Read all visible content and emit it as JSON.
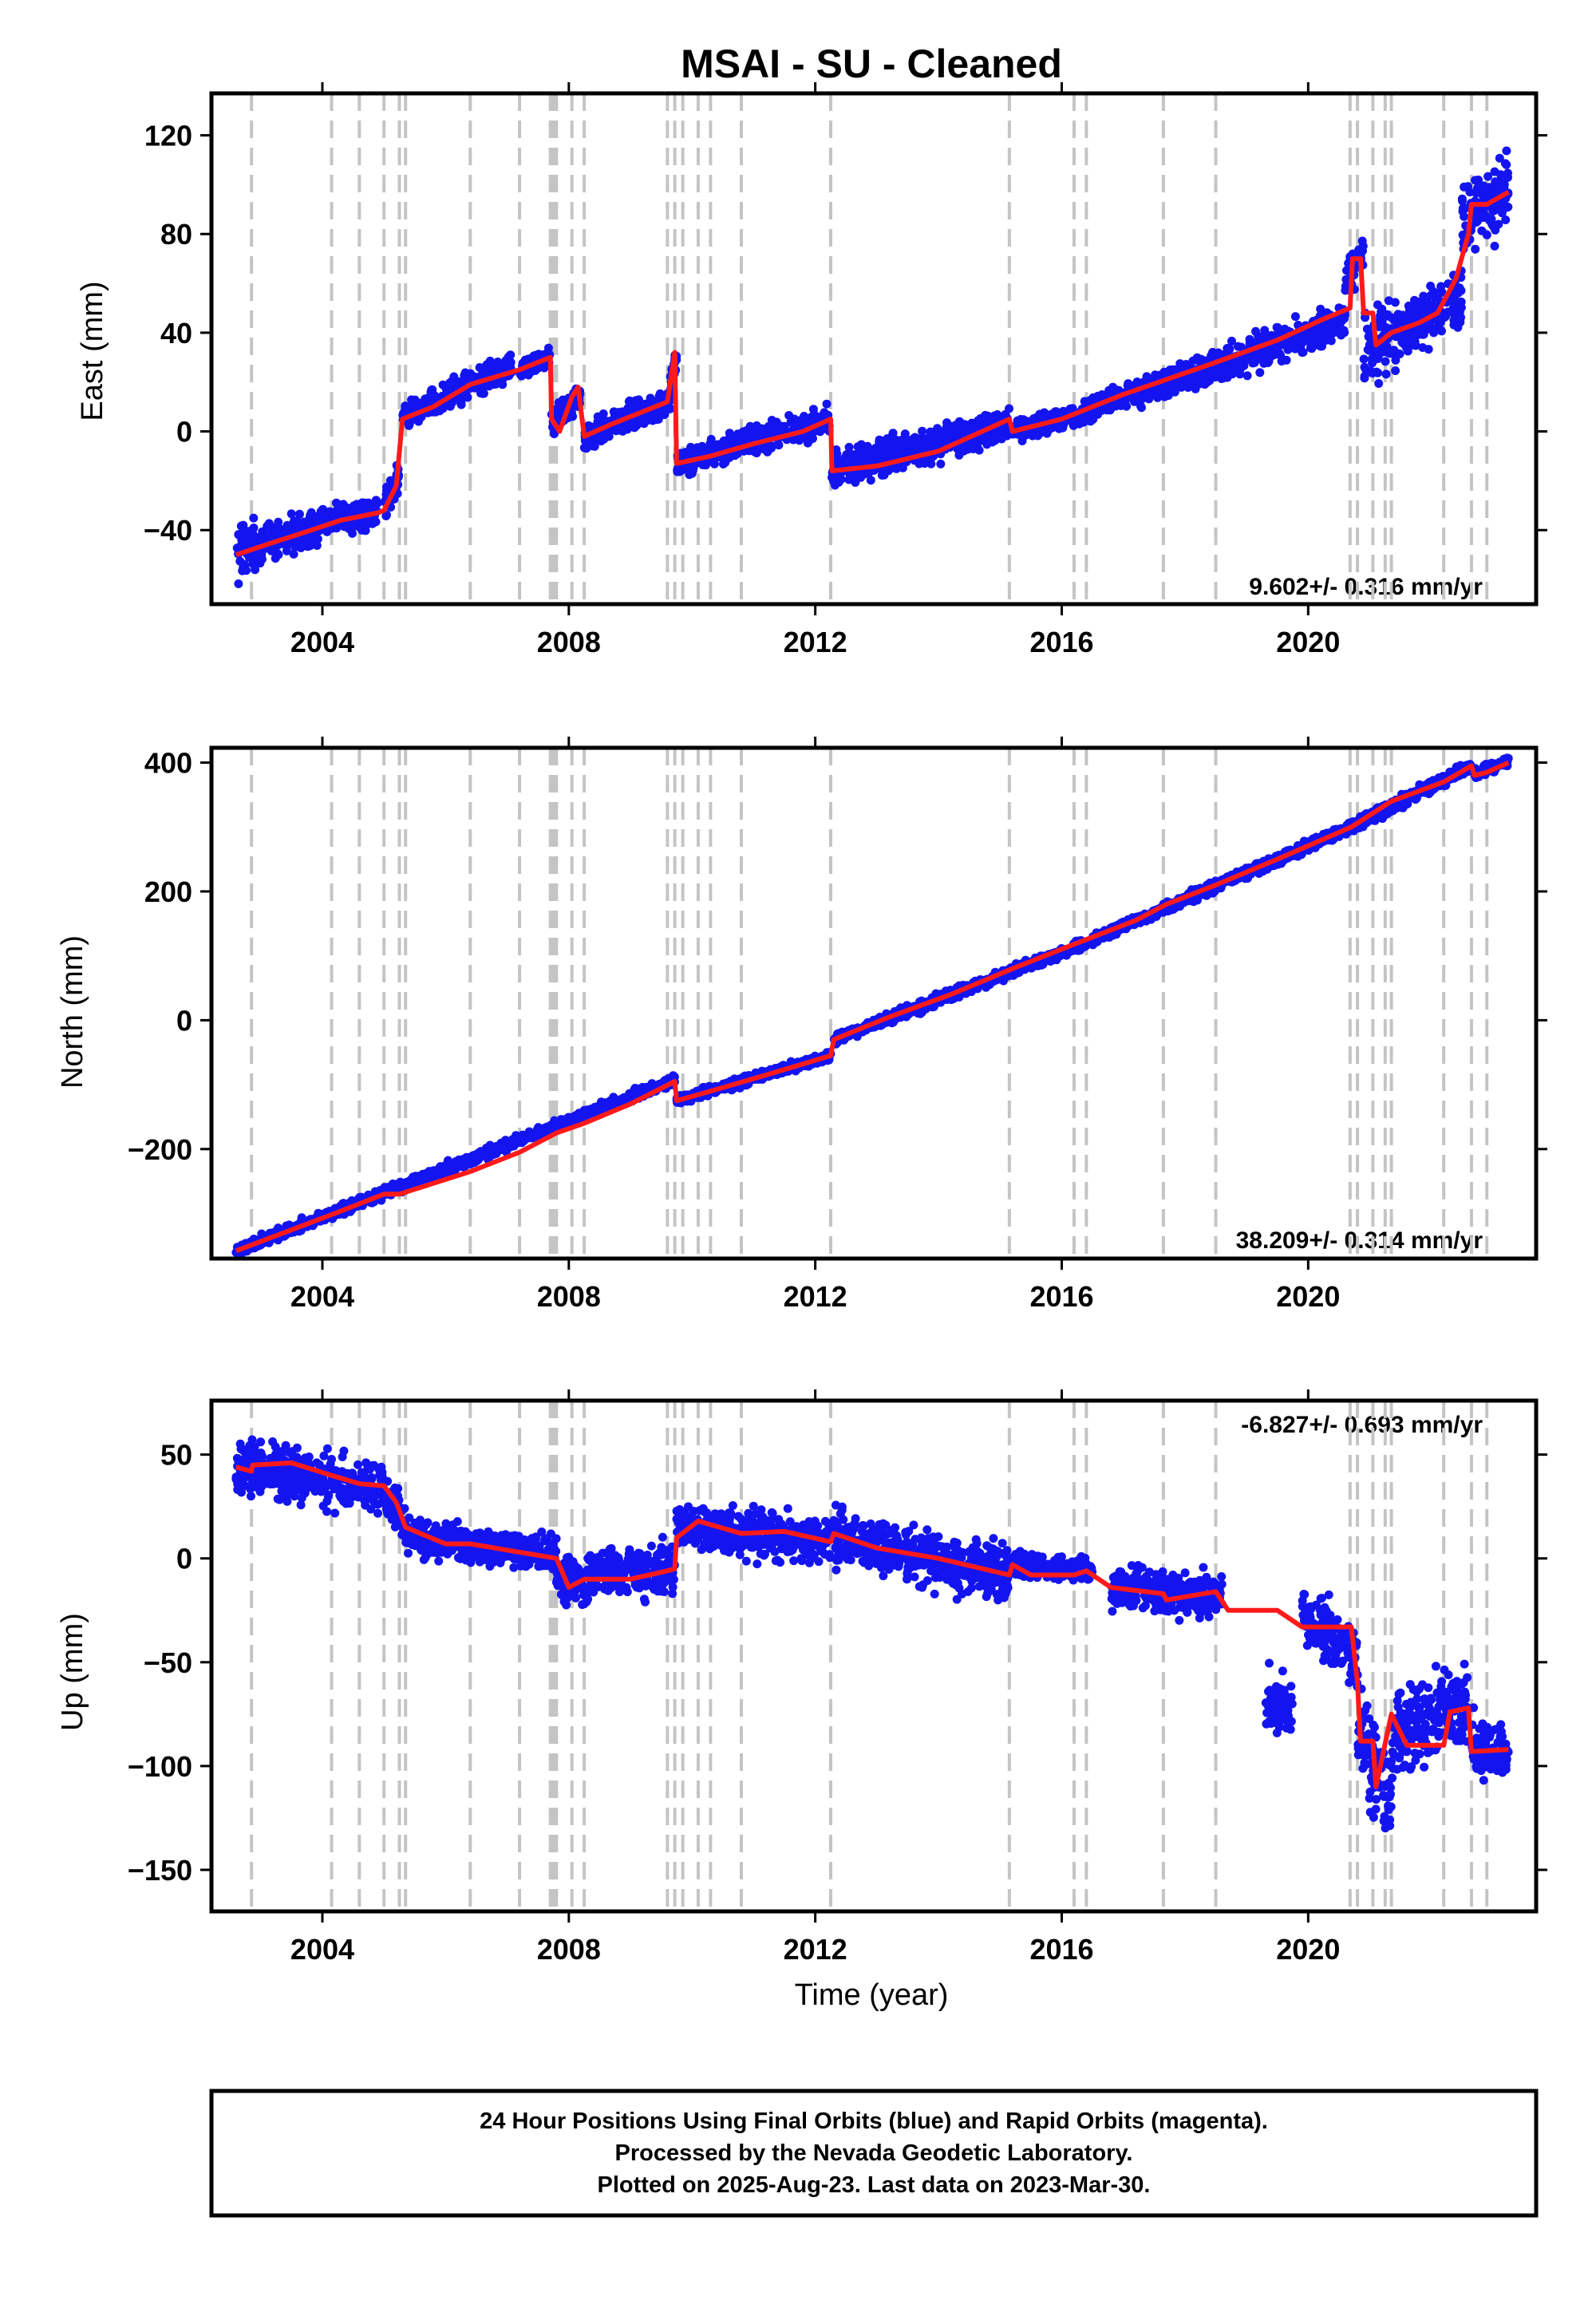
{
  "chart_data": {
    "type": "scatter",
    "title": "MSAI  - SU - Cleaned",
    "xlabel": "Time (year)",
    "xlim": [
      2002.2,
      2023.7
    ],
    "xticks": [
      2004,
      2008,
      2012,
      2016,
      2020
    ],
    "xtick_labels": [
      "2004",
      "2008",
      "2012",
      "2016",
      "2020"
    ],
    "grid": "vertical dashed lines at equipment / event epochs",
    "event_lines": [
      2002.85,
      2004.15,
      2004.6,
      2005.0,
      2005.25,
      2005.35,
      2006.4,
      2007.2,
      2007.7,
      2007.75,
      2007.8,
      2008.05,
      2008.25,
      2009.6,
      2009.72,
      2009.85,
      2010.1,
      2010.3,
      2010.8,
      2012.25,
      2015.15,
      2016.2,
      2016.4,
      2017.65,
      2018.5,
      2020.68,
      2020.8,
      2021.05,
      2021.25,
      2021.35,
      2022.2,
      2022.65,
      2022.9
    ],
    "panels": [
      {
        "ylabel": "East (mm)",
        "ylim": [
          -70,
          137
        ],
        "yticks": [
          -40,
          0,
          40,
          80,
          120
        ],
        "ytick_labels": [
          "−40",
          "0",
          "40",
          "80",
          "120"
        ],
        "rate_text": "9.602+/- 0.316 mm/yr",
        "rate_position": "bottom-right",
        "model_line": [
          [
            2002.6,
            -50
          ],
          [
            2003.2,
            -45
          ],
          [
            2003.7,
            -41
          ],
          [
            2004.3,
            -36
          ],
          [
            2004.9,
            -33
          ],
          [
            2005.0,
            -32
          ],
          [
            2005.2,
            -22
          ],
          [
            2005.3,
            5
          ],
          [
            2005.8,
            10
          ],
          [
            2006.4,
            19
          ],
          [
            2007.2,
            25
          ],
          [
            2007.7,
            30
          ],
          [
            2007.72,
            5
          ],
          [
            2007.85,
            0
          ],
          [
            2008.05,
            14
          ],
          [
            2008.15,
            18
          ],
          [
            2008.25,
            -2
          ],
          [
            2008.7,
            3
          ],
          [
            2009.6,
            12
          ],
          [
            2009.72,
            32
          ],
          [
            2009.75,
            -13
          ],
          [
            2010.3,
            -10
          ],
          [
            2011.0,
            -5
          ],
          [
            2011.8,
            0
          ],
          [
            2012.25,
            5
          ],
          [
            2012.27,
            -16
          ],
          [
            2013.0,
            -14
          ],
          [
            2014.0,
            -8
          ],
          [
            2015.15,
            5
          ],
          [
            2015.2,
            0
          ],
          [
            2016.0,
            5
          ],
          [
            2017.0,
            15
          ],
          [
            2017.7,
            21
          ],
          [
            2018.5,
            28
          ],
          [
            2019.5,
            37
          ],
          [
            2020.2,
            45
          ],
          [
            2020.68,
            50
          ],
          [
            2020.72,
            70
          ],
          [
            2020.85,
            70
          ],
          [
            2020.9,
            48
          ],
          [
            2021.05,
            48
          ],
          [
            2021.1,
            35
          ],
          [
            2021.35,
            40
          ],
          [
            2021.8,
            44
          ],
          [
            2022.1,
            48
          ],
          [
            2022.4,
            62
          ],
          [
            2022.6,
            80
          ],
          [
            2022.65,
            92
          ],
          [
            2022.9,
            92
          ],
          [
            2023.25,
            97
          ]
        ],
        "scatter_segments": [
          {
            "x": [
              2002.6,
              2003.0
            ],
            "y": [
              -50,
              -46
            ],
            "spread": 8
          },
          {
            "x": [
              2003.0,
              2004.0
            ],
            "y": [
              -45,
              -38
            ],
            "spread": 5
          },
          {
            "x": [
              2004.0,
              2004.9
            ],
            "y": [
              -36,
              -33
            ],
            "spread": 4
          },
          {
            "x": [
              2005.0,
              2005.25
            ],
            "y": [
              -30,
              -18
            ],
            "spread": 4
          },
          {
            "x": [
              2005.3,
              2007.1
            ],
            "y": [
              5,
              27
            ],
            "spread": 4
          },
          {
            "x": [
              2007.2,
              2007.7
            ],
            "y": [
              25,
              30
            ],
            "spread": 3
          },
          {
            "x": [
              2007.72,
              2008.2
            ],
            "y": [
              3,
              15
            ],
            "spread": 4
          },
          {
            "x": [
              2008.25,
              2009.65
            ],
            "y": [
              -2,
              12
            ],
            "spread": 4
          },
          {
            "x": [
              2009.65,
              2009.75
            ],
            "y": [
              18,
              32
            ],
            "spread": 5
          },
          {
            "x": [
              2009.75,
              2012.25
            ],
            "y": [
              -13,
              5
            ],
            "spread": 4
          },
          {
            "x": [
              2012.27,
              2015.15
            ],
            "y": [
              -16,
              3
            ],
            "spread": 5
          },
          {
            "x": [
              2015.2,
              2016.5
            ],
            "y": [
              0,
              8
            ],
            "spread": 3
          },
          {
            "x": [
              2016.5,
              2017.7
            ],
            "y": [
              10,
              20
            ],
            "spread": 4
          },
          {
            "x": [
              2017.7,
              2020.6
            ],
            "y": [
              19,
              45
            ],
            "spread": 5
          },
          {
            "x": [
              2020.6,
              2020.9
            ],
            "y": [
              60,
              73
            ],
            "spread": 6
          },
          {
            "x": [
              2020.9,
              2021.4
            ],
            "y": [
              30,
              42
            ],
            "spread": 10
          },
          {
            "x": [
              2021.4,
              2022.5
            ],
            "y": [
              38,
              55
            ],
            "spread": 8
          },
          {
            "x": [
              2022.5,
              2023.25
            ],
            "y": [
              85,
              98
            ],
            "spread": 10
          }
        ]
      },
      {
        "ylabel": "North (mm)",
        "ylim": [
          -370,
          423
        ],
        "yticks": [
          -200,
          0,
          200,
          400
        ],
        "ytick_labels": [
          "−200",
          "0",
          "200",
          "400"
        ],
        "rate_text": "38.209+/- 0.314 mm/yr",
        "rate_position": "bottom-right",
        "model_line": [
          [
            2002.6,
            -358
          ],
          [
            2004.2,
            -300
          ],
          [
            2005.0,
            -270
          ],
          [
            2005.25,
            -270
          ],
          [
            2006.4,
            -235
          ],
          [
            2007.2,
            -205
          ],
          [
            2007.8,
            -175
          ],
          [
            2008.25,
            -160
          ],
          [
            2009.0,
            -130
          ],
          [
            2009.72,
            -95
          ],
          [
            2009.75,
            -125
          ],
          [
            2010.3,
            -110
          ],
          [
            2011.2,
            -85
          ],
          [
            2012.25,
            -55
          ],
          [
            2012.3,
            -30
          ],
          [
            2013.2,
            5
          ],
          [
            2014.2,
            40
          ],
          [
            2015.2,
            80
          ],
          [
            2016.2,
            118
          ],
          [
            2017.2,
            155
          ],
          [
            2017.7,
            180
          ],
          [
            2018.5,
            210
          ],
          [
            2019.5,
            250
          ],
          [
            2020.7,
            300
          ],
          [
            2021.35,
            340
          ],
          [
            2022.2,
            370
          ],
          [
            2022.65,
            395
          ],
          [
            2022.7,
            380
          ],
          [
            2022.9,
            385
          ],
          [
            2023.25,
            400
          ]
        ],
        "scatter_segments": [
          {
            "x": [
              2002.6,
              2009.72
            ],
            "y": [
              -358,
              -92
            ],
            "spread": 6
          },
          {
            "x": [
              2009.75,
              2012.25
            ],
            "y": [
              -125,
              -55
            ],
            "spread": 5
          },
          {
            "x": [
              2012.3,
              2016.4
            ],
            "y": [
              -30,
              120
            ],
            "spread": 6
          },
          {
            "x": [
              2016.5,
              2020.7
            ],
            "y": [
              125,
              300
            ],
            "spread": 6
          },
          {
            "x": [
              2020.7,
              2022.65
            ],
            "y": [
              300,
              395
            ],
            "spread": 7
          },
          {
            "x": [
              2022.7,
              2023.25
            ],
            "y": [
              382,
              402
            ],
            "spread": 6
          }
        ]
      },
      {
        "ylabel": "Up (mm)",
        "ylim": [
          -170,
          76
        ],
        "yticks": [
          -150,
          -100,
          -50,
          0,
          50
        ],
        "ytick_labels": [
          "−150",
          "−100",
          "−50",
          "0",
          "50"
        ],
        "rate_text": "-6.827+/- 0.693 mm/yr",
        "rate_position": "top-right",
        "model_line": [
          [
            2002.6,
            44
          ],
          [
            2002.85,
            42
          ],
          [
            2002.87,
            45
          ],
          [
            2003.5,
            46
          ],
          [
            2004.15,
            40
          ],
          [
            2004.6,
            36
          ],
          [
            2005.0,
            35
          ],
          [
            2005.2,
            27
          ],
          [
            2005.35,
            15
          ],
          [
            2006.0,
            7
          ],
          [
            2006.4,
            7
          ],
          [
            2007.2,
            3
          ],
          [
            2007.8,
            0
          ],
          [
            2008.0,
            -14
          ],
          [
            2008.25,
            -10
          ],
          [
            2009.0,
            -10
          ],
          [
            2009.6,
            -6
          ],
          [
            2009.72,
            -5
          ],
          [
            2009.75,
            10
          ],
          [
            2010.1,
            18
          ],
          [
            2010.8,
            12
          ],
          [
            2011.5,
            13
          ],
          [
            2012.25,
            8
          ],
          [
            2012.3,
            12
          ],
          [
            2013.0,
            5
          ],
          [
            2014.0,
            0
          ],
          [
            2015.15,
            -8
          ],
          [
            2015.2,
            -3
          ],
          [
            2015.5,
            -8
          ],
          [
            2016.2,
            -8
          ],
          [
            2016.4,
            -6
          ],
          [
            2016.8,
            -14
          ],
          [
            2017.65,
            -17
          ],
          [
            2017.7,
            -20
          ],
          [
            2018.5,
            -16
          ],
          [
            2018.7,
            -25
          ],
          [
            2019.5,
            -25
          ],
          [
            2019.9,
            -33
          ],
          [
            2020.7,
            -33
          ],
          [
            2020.8,
            -60
          ],
          [
            2020.85,
            -88
          ],
          [
            2021.05,
            -88
          ],
          [
            2021.1,
            -110
          ],
          [
            2021.35,
            -75
          ],
          [
            2021.6,
            -90
          ],
          [
            2022.2,
            -90
          ],
          [
            2022.3,
            -74
          ],
          [
            2022.6,
            -72
          ],
          [
            2022.65,
            -93
          ],
          [
            2023.25,
            -92
          ]
        ],
        "scatter_segments": [
          {
            "x": [
              2002.6,
              2005.0
            ],
            "y": [
              44,
              35
            ],
            "spread": 9
          },
          {
            "x": [
              2005.0,
              2005.35
            ],
            "y": [
              30,
              20
            ],
            "spread": 7
          },
          {
            "x": [
              2005.35,
              2007.8
            ],
            "y": [
              10,
              2
            ],
            "spread": 6
          },
          {
            "x": [
              2007.8,
              2008.3
            ],
            "y": [
              -10,
              -13
            ],
            "spread": 8
          },
          {
            "x": [
              2008.3,
              2009.72
            ],
            "y": [
              -8,
              -4
            ],
            "spread": 9
          },
          {
            "x": [
              2009.75,
              2012.25
            ],
            "y": [
              15,
              8
            ],
            "spread": 8
          },
          {
            "x": [
              2012.3,
              2015.15
            ],
            "y": [
              10,
              -8
            ],
            "spread": 9
          },
          {
            "x": [
              2015.2,
              2016.5
            ],
            "y": [
              -3,
              -6
            ],
            "spread": 4
          },
          {
            "x": [
              2016.8,
              2018.6
            ],
            "y": [
              -14,
              -18
            ],
            "spread": 8
          },
          {
            "x": [
              2019.3,
              2019.75
            ],
            "y": [
              -70,
              -70
            ],
            "spread": 10
          },
          {
            "x": [
              2019.9,
              2020.8
            ],
            "y": [
              -25,
              -50
            ],
            "spread": 10
          },
          {
            "x": [
              2020.8,
              2021.35
            ],
            "y": [
              -85,
              -110
            ],
            "spread": 18
          },
          {
            "x": [
              2021.35,
              2022.6
            ],
            "y": [
              -85,
              -68
            ],
            "spread": 14
          },
          {
            "x": [
              2022.65,
              2023.25
            ],
            "y": [
              -90,
              -92
            ],
            "spread": 10
          }
        ]
      }
    ]
  },
  "colors": {
    "points": "#1414f0",
    "model": "#ff1a1a",
    "event_line": "#c4c4c4",
    "frame": "#000000"
  },
  "footer": {
    "line1": "24 Hour Positions Using Final Orbits (blue) and Rapid Orbits (magenta).",
    "line2": "Processed by the Nevada Geodetic Laboratory.",
    "line3": "Plotted on 2025-Aug-23. Last data on 2023-Mar-30."
  }
}
